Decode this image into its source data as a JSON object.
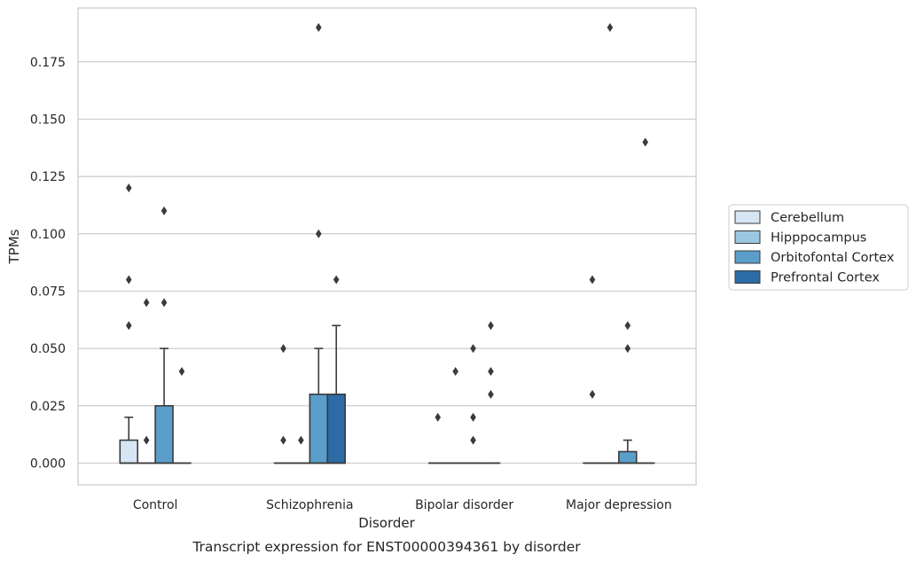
{
  "chart_data": {
    "type": "box",
    "xlabel": "Disorder",
    "ylabel": "TPMs",
    "caption": "Transcript expression for ENST00000394361 by disorder",
    "ylim": [
      -0.0095,
      0.1985
    ],
    "yticks": [
      "0.000",
      "0.025",
      "0.050",
      "0.075",
      "0.100",
      "0.125",
      "0.150",
      "0.175"
    ],
    "grid": "horizontal",
    "legend_position": "right",
    "categories": [
      "Control",
      "Schizophrenia",
      "Bipolar disorder",
      "Major depression"
    ],
    "series": [
      {
        "name": "Cerebellum",
        "color": "#d6e6f4",
        "boxes": [
          {
            "q1": 0,
            "median": 0,
            "q3": 0.01,
            "whisker_low": 0,
            "whisker_high": 0.02,
            "outliers": [
              0.12,
              0.08,
              0.06
            ]
          },
          {
            "q1": 0,
            "median": 0,
            "q3": 0,
            "whisker_low": 0,
            "whisker_high": 0,
            "outliers": [
              0.05,
              0.01
            ]
          },
          {
            "q1": 0,
            "median": 0,
            "q3": 0,
            "whisker_low": 0,
            "whisker_high": 0,
            "outliers": [
              0.02
            ]
          },
          {
            "q1": 0,
            "median": 0,
            "q3": 0,
            "whisker_low": 0,
            "whisker_high": 0,
            "outliers": [
              0.08,
              0.03
            ]
          }
        ]
      },
      {
        "name": "Hipppocampus",
        "color": "#9ac8e0",
        "boxes": [
          {
            "q1": 0,
            "median": 0,
            "q3": 0,
            "whisker_low": 0,
            "whisker_high": 0,
            "outliers": [
              0.07,
              0.01
            ]
          },
          {
            "q1": 0,
            "median": 0,
            "q3": 0,
            "whisker_low": 0,
            "whisker_high": 0,
            "outliers": [
              0.01
            ]
          },
          {
            "q1": 0,
            "median": 0,
            "q3": 0,
            "whisker_low": 0,
            "whisker_high": 0,
            "outliers": [
              0.04
            ]
          },
          {
            "q1": 0,
            "median": 0,
            "q3": 0,
            "whisker_low": 0,
            "whisker_high": 0,
            "outliers": [
              0.19
            ]
          }
        ]
      },
      {
        "name": "Orbitofontal Cortex",
        "color": "#5a9ec9",
        "boxes": [
          {
            "q1": 0,
            "median": 0,
            "q3": 0.025,
            "whisker_low": 0,
            "whisker_high": 0.05,
            "outliers": [
              0.11,
              0.07
            ]
          },
          {
            "q1": 0,
            "median": 0,
            "q3": 0.03,
            "whisker_low": 0,
            "whisker_high": 0.05,
            "outliers": [
              0.19,
              0.1
            ]
          },
          {
            "q1": 0,
            "median": 0,
            "q3": 0,
            "whisker_low": 0,
            "whisker_high": 0,
            "outliers": [
              0.05,
              0.02,
              0.01
            ]
          },
          {
            "q1": 0,
            "median": 0,
            "q3": 0.005,
            "whisker_low": 0,
            "whisker_high": 0.01,
            "outliers": [
              0.06,
              0.05
            ]
          }
        ]
      },
      {
        "name": "Prefrontal Cortex",
        "color": "#2c6ba6",
        "boxes": [
          {
            "q1": 0,
            "median": 0,
            "q3": 0,
            "whisker_low": 0,
            "whisker_high": 0,
            "outliers": [
              0.04
            ]
          },
          {
            "q1": 0,
            "median": 0,
            "q3": 0.03,
            "whisker_low": 0,
            "whisker_high": 0.06,
            "outliers": [
              0.08
            ]
          },
          {
            "q1": 0,
            "median": 0,
            "q3": 0,
            "whisker_low": 0,
            "whisker_high": 0,
            "outliers": [
              0.06,
              0.04,
              0.03
            ]
          },
          {
            "q1": 0,
            "median": 0,
            "q3": 0,
            "whisker_low": 0,
            "whisker_high": 0,
            "outliers": [
              0.14
            ]
          }
        ]
      }
    ]
  }
}
